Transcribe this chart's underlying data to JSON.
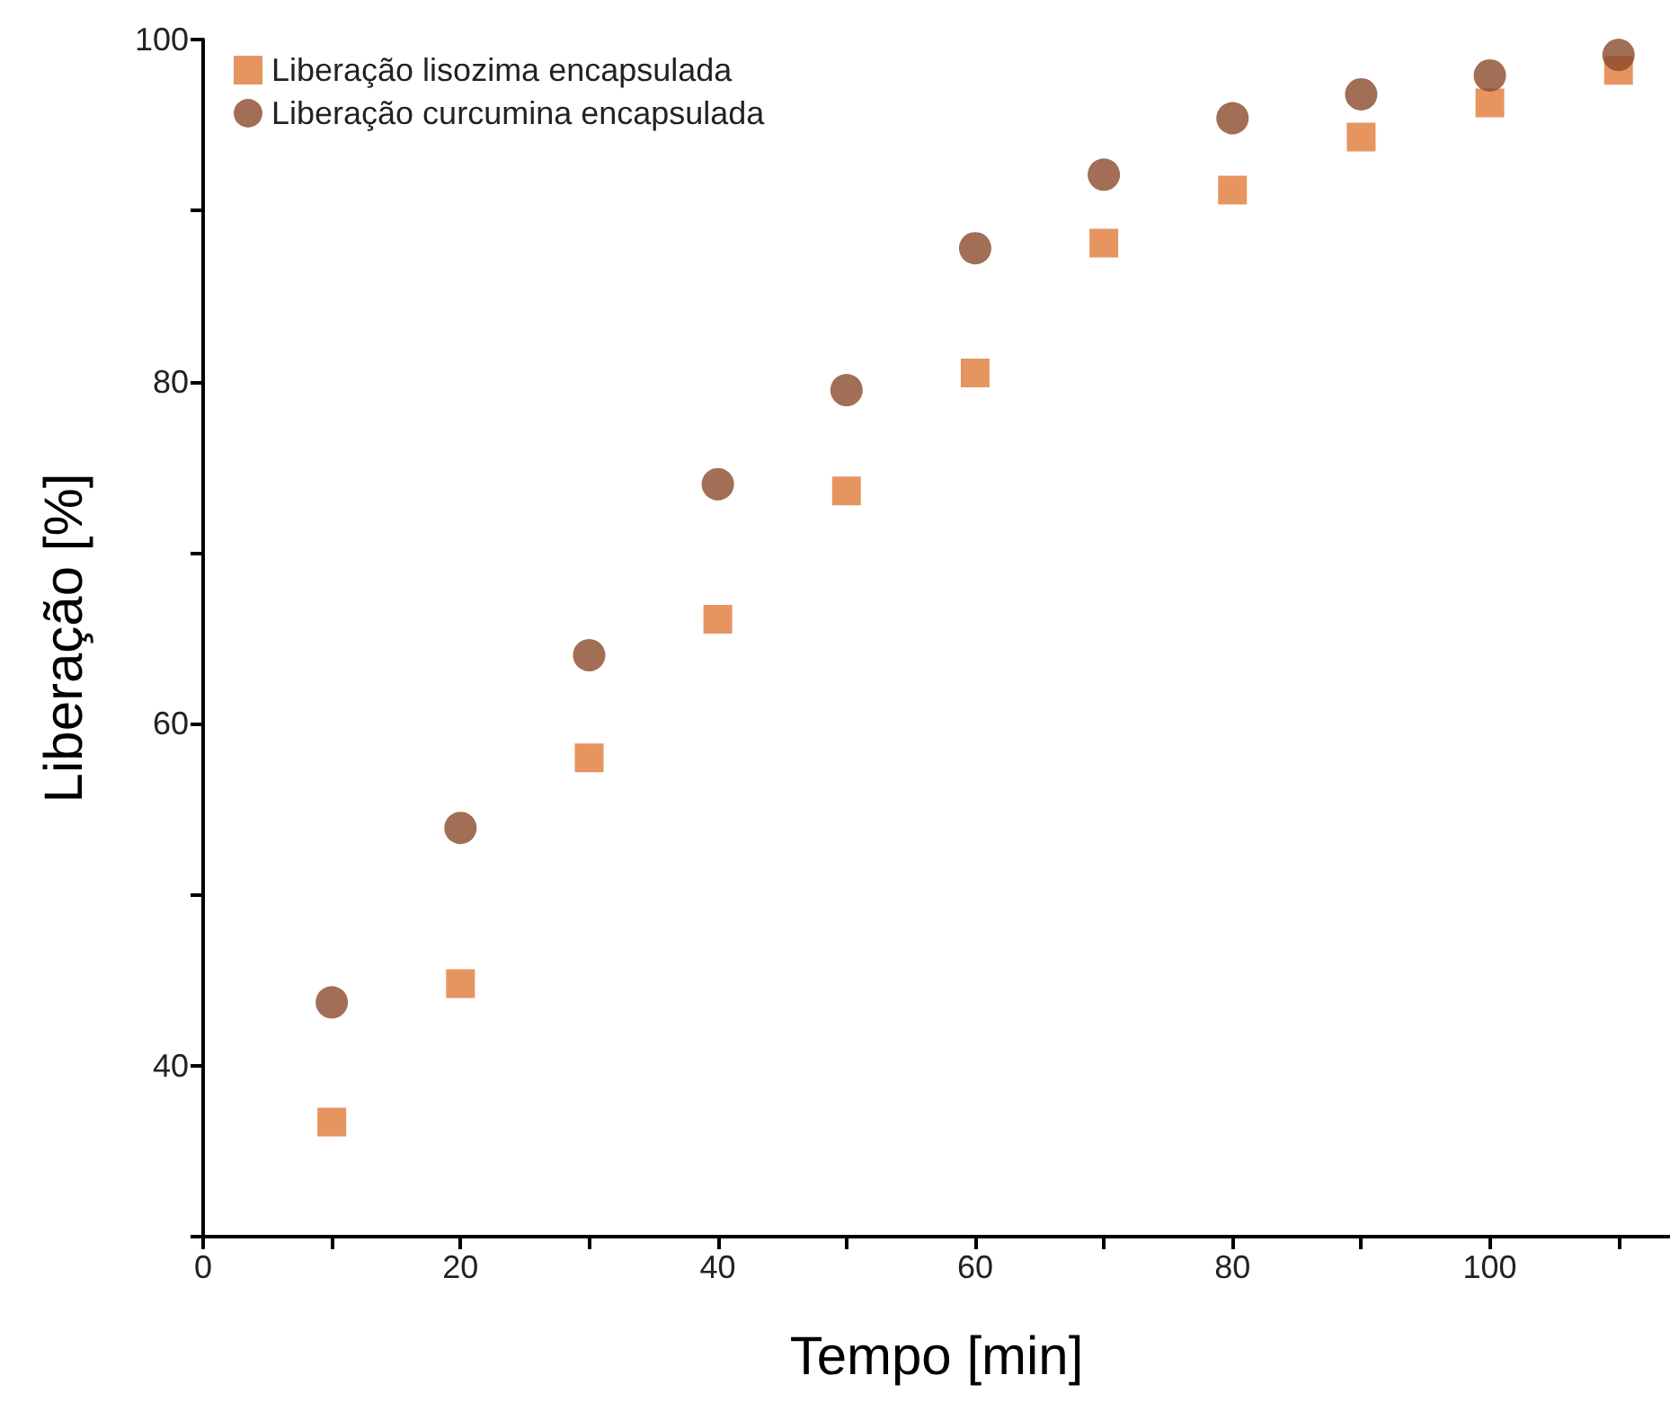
{
  "chart_data": {
    "type": "scatter",
    "xlabel": "Tempo [min]",
    "ylabel": "Liberação [%]",
    "x": [
      10,
      20,
      30,
      40,
      50,
      60,
      70,
      80,
      90,
      100,
      110
    ],
    "series": [
      {
        "name": "Liberação lisozima encapsulada",
        "color": "#e07b39",
        "marker": "square",
        "values": [
          36.7,
          44.8,
          58.0,
          66.1,
          73.6,
          80.5,
          88.1,
          91.2,
          94.3,
          96.3,
          98.2
        ]
      },
      {
        "name": "Liberação curcumina encapsulada",
        "color": "#8b4a2b",
        "marker": "circle",
        "values": [
          43.7,
          53.9,
          64.0,
          74.0,
          79.5,
          87.8,
          92.1,
          95.4,
          96.8,
          97.9,
          99.1
        ]
      }
    ],
    "xlim": [
      0,
      114
    ],
    "xticks": [
      0,
      {
        "value": 10,
        "label": null
      },
      20,
      {
        "value": 30,
        "label": null
      },
      40,
      {
        "value": 50,
        "label": null
      },
      60,
      {
        "value": 70,
        "label": null
      },
      80,
      {
        "value": 90,
        "label": null
      },
      100,
      {
        "value": 110,
        "label": null
      }
    ],
    "ylim": [
      30,
      100
    ],
    "yticks": [
      {
        "value": 30,
        "label": null
      },
      40,
      {
        "value": 50,
        "label": null
      },
      60,
      {
        "value": 70,
        "label": null
      },
      80,
      {
        "value": 90,
        "label": null
      },
      100
    ],
    "legend": "top left",
    "grid": false
  }
}
